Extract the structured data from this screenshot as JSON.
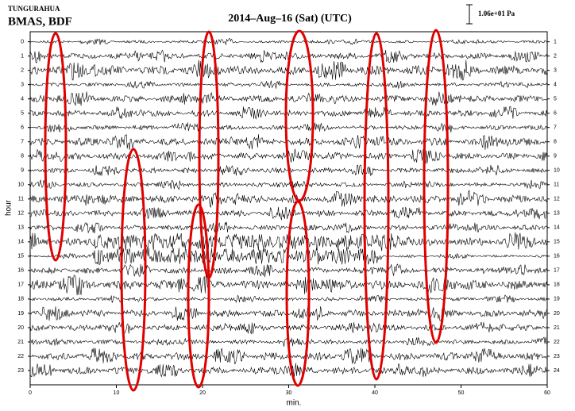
{
  "chart_data": {
    "type": "helicorder",
    "network": "TUNGURAHUA",
    "station": "BMAS, BDF",
    "title": "2014–Aug–16 (Sat) (UTC)",
    "scale_label": "1.06e+01 Pa",
    "xlabel": "min.",
    "ylabel": "hour",
    "xlim": [
      0,
      60
    ],
    "xticks": [
      0,
      10,
      20,
      30,
      40,
      50,
      60
    ],
    "ylim": [
      -0.7,
      24
    ],
    "yticks": [
      0,
      1,
      2,
      3,
      4,
      5,
      6,
      7,
      8,
      9,
      10,
      11,
      12,
      13,
      14,
      15,
      16,
      17,
      18,
      19,
      20,
      21,
      22,
      23
    ],
    "y2lim": [
      0.3,
      25
    ],
    "y2ticks": [
      1,
      2,
      3,
      4,
      5,
      6,
      7,
      8,
      9,
      10,
      11,
      12,
      13,
      14,
      15,
      16,
      17,
      18,
      19,
      20,
      21,
      22,
      23,
      24
    ],
    "inverted": true,
    "color": "#000000"
  }
}
